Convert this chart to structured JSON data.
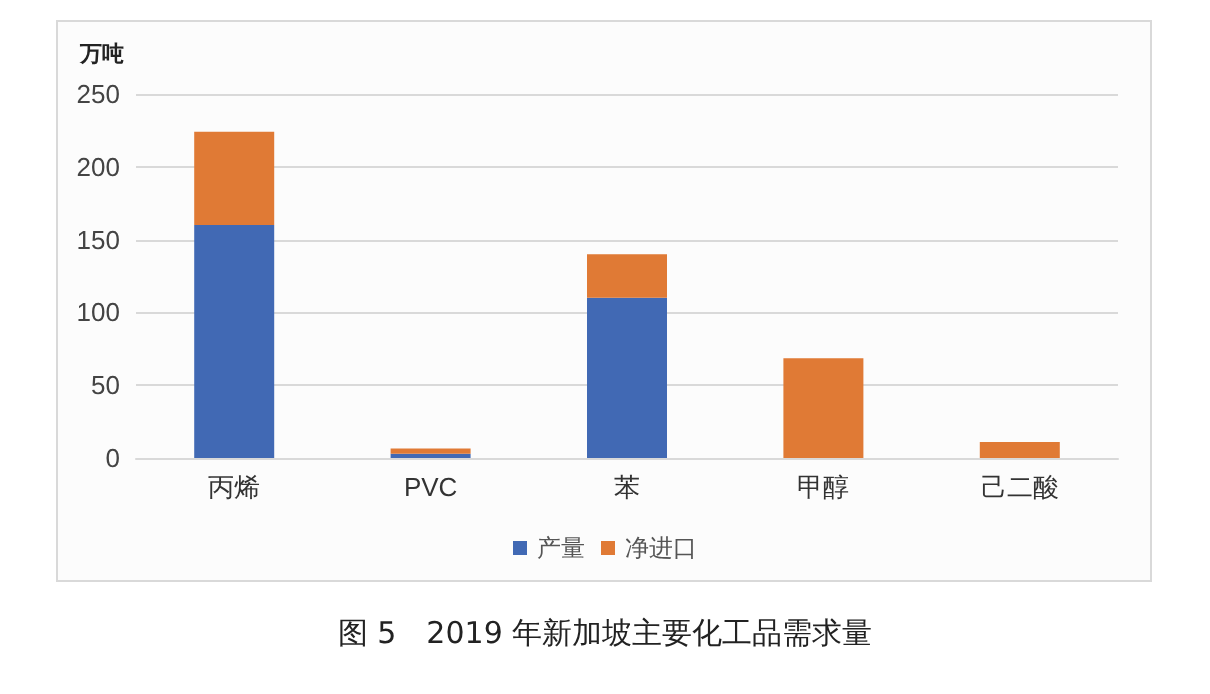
{
  "chart_data": {
    "type": "bar",
    "title": "图 5　2019 年新加坡主要化工品需求量",
    "ylabel": "万吨",
    "categories": [
      "丙烯",
      "PVC",
      "苯",
      "甲醇",
      "己二酸"
    ],
    "series": [
      {
        "name": "产量",
        "color": "#4169b4",
        "values": [
          160,
          3,
          110,
          0,
          0
        ]
      },
      {
        "name": "净进口",
        "color": "#e07a35",
        "values": [
          64,
          3.5,
          30,
          68.5,
          11
        ]
      }
    ],
    "stacked": true,
    "ylim": [
      0,
      250
    ],
    "yticks": [
      0,
      50,
      100,
      150,
      200,
      250
    ],
    "grid": "y",
    "legend": "bottom"
  }
}
